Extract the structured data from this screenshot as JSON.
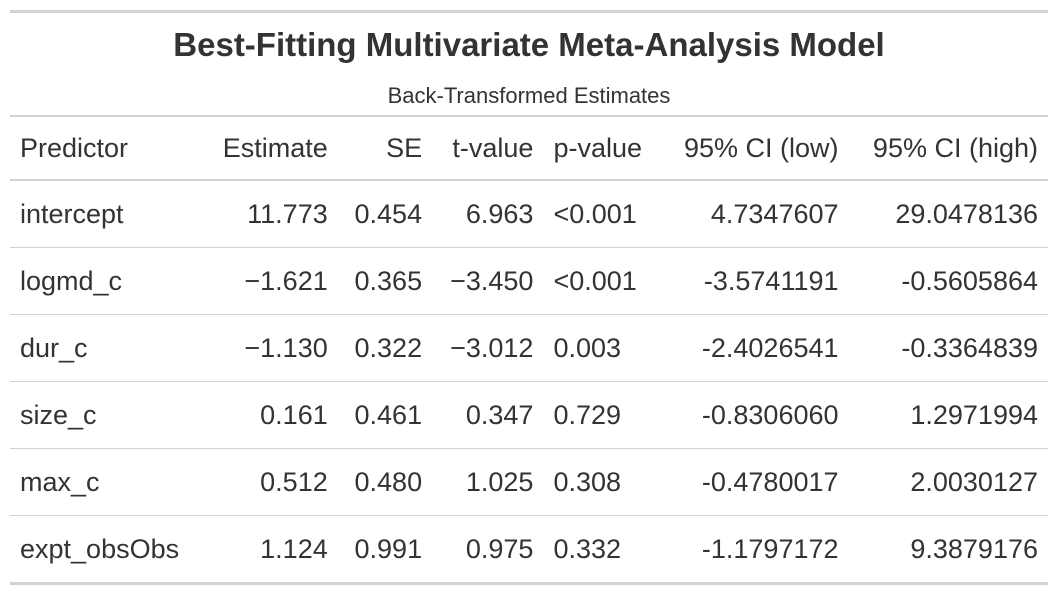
{
  "table": {
    "title": "Best-Fitting Multivariate Meta-Analysis Model",
    "subtitle": "Back-Transformed Estimates",
    "columns": [
      "Predictor",
      "Estimate",
      "SE",
      "t-value",
      "p-value",
      "95% CI (low)",
      "95% CI (high)"
    ],
    "rows": [
      [
        "intercept",
        "11.773",
        "0.454",
        "6.963",
        "<0.001",
        "4.7347607",
        "29.0478136"
      ],
      [
        "logmd_c",
        "−1.621",
        "0.365",
        "−3.450",
        "<0.001",
        "-3.5741191",
        "-0.5605864"
      ],
      [
        "dur_c",
        "−1.130",
        "0.322",
        "−3.012",
        "0.003",
        "-2.4026541",
        "-0.3364839"
      ],
      [
        "size_c",
        "0.161",
        "0.461",
        "0.347",
        "0.729",
        "-0.8306060",
        "1.2971994"
      ],
      [
        "max_c",
        "0.512",
        "0.480",
        "1.025",
        "0.308",
        "-0.4780017",
        "2.0030127"
      ],
      [
        "expt_obsObs",
        "1.124",
        "0.991",
        "0.975",
        "0.332",
        "-1.1797172",
        "9.3879176"
      ]
    ]
  },
  "colors": {
    "text": "#333333",
    "rule": "#d3d3d3",
    "background": "#ffffff"
  }
}
